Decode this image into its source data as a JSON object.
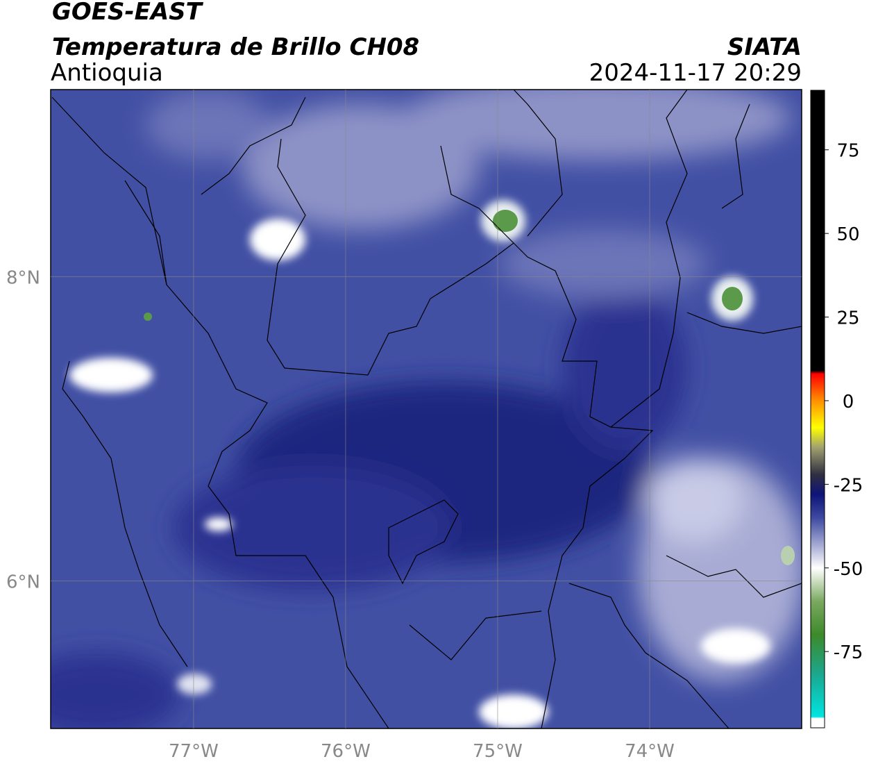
{
  "header": {
    "satellite": "GOES-EAST",
    "product": "Temperatura de Brillo CH08",
    "region": "Antioquia",
    "source": "SIATA",
    "datetime": "2024-11-17 20:29"
  },
  "map": {
    "xlim": [
      -77.94,
      -73.0
    ],
    "ylim": [
      5.03,
      9.23
    ],
    "xticks": [
      {
        "value": -77,
        "label": "77°W"
      },
      {
        "value": -76,
        "label": "76°W"
      },
      {
        "value": -75,
        "label": "75°W"
      },
      {
        "value": -74,
        "label": "74°W"
      }
    ],
    "yticks": [
      {
        "value": 8,
        "label": "8°N"
      },
      {
        "value": 6,
        "label": "6°N"
      }
    ],
    "grid": true
  },
  "colorbar": {
    "clim": [
      -97.8,
      92.8
    ],
    "ticks": [
      75,
      50,
      25,
      0,
      -25,
      -50,
      -75
    ],
    "colormap": [
      {
        "value": -97.8,
        "color": "#ffffff"
      },
      {
        "value": -95,
        "color": "#ffffff"
      },
      {
        "value": -94.5,
        "color": "#00e5e0"
      },
      {
        "value": -82,
        "color": "#1aa890"
      },
      {
        "value": -70,
        "color": "#3d8a2a"
      },
      {
        "value": -60,
        "color": "#7aa860"
      },
      {
        "value": -53,
        "color": "#d8e6d0"
      },
      {
        "value": -50,
        "color": "#ffffff"
      },
      {
        "value": -44,
        "color": "#b0b4d8"
      },
      {
        "value": -35,
        "color": "#3e4aa0"
      },
      {
        "value": -28,
        "color": "#0e1478"
      },
      {
        "value": -22,
        "color": "#303040"
      },
      {
        "value": -14,
        "color": "#a0a070"
      },
      {
        "value": -8,
        "color": "#ffff00"
      },
      {
        "value": 0,
        "color": "#ff9000"
      },
      {
        "value": 8,
        "color": "#ff0000"
      },
      {
        "value": 9,
        "color": "#000000"
      },
      {
        "value": 92.8,
        "color": "#000000"
      }
    ]
  }
}
